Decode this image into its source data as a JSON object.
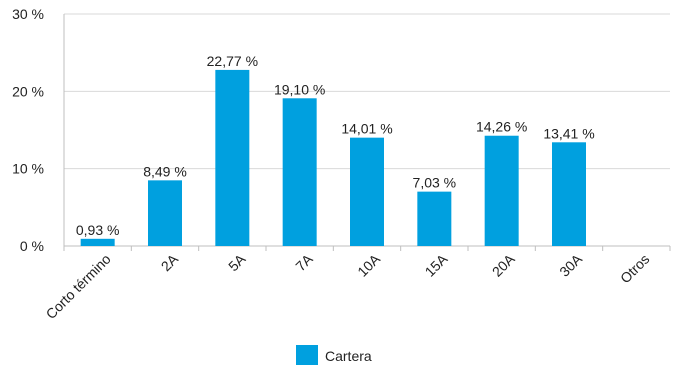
{
  "chart_data": {
    "type": "bar",
    "categories": [
      "Corto término",
      "2A",
      "5A",
      "7A",
      "10A",
      "15A",
      "20A",
      "30A",
      "Otros"
    ],
    "series": [
      {
        "name": "Cartera",
        "values": [
          0.93,
          8.49,
          22.77,
          19.1,
          14.01,
          7.03,
          14.26,
          13.41,
          null
        ],
        "data_labels": [
          "0,93 %",
          "8,49 %",
          "22,77 %",
          "19,10 %",
          "14,01 %",
          "7,03 %",
          "14,26 %",
          "13,41 %",
          ""
        ]
      }
    ],
    "yticks": [
      0,
      10,
      20,
      30
    ],
    "ytick_labels": [
      "0 %",
      "10 %",
      "20 %",
      "30 %"
    ],
    "ylim": [
      0,
      30
    ],
    "grid": true,
    "legend_position": "bottom",
    "colors": {
      "bar": "#00A0DF",
      "grid": "#D9D9D9",
      "axis": "#BFBFBF"
    }
  }
}
